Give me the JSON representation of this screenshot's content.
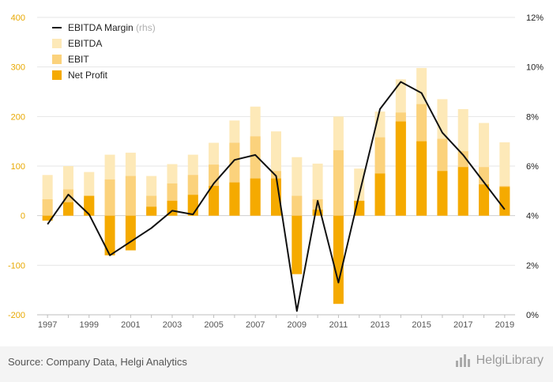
{
  "chart_data": {
    "type": "bar",
    "x": [
      "1997",
      "1998",
      "1999",
      "2000",
      "2001",
      "2002",
      "2003",
      "2004",
      "2005",
      "2006",
      "2007",
      "2008",
      "2009",
      "2010",
      "2011",
      "2012",
      "2013",
      "2014",
      "2015",
      "2016",
      "2017",
      "2018",
      "2019"
    ],
    "x_tick_labels": [
      "1997",
      "1999",
      "2001",
      "2003",
      "2005",
      "2007",
      "2009",
      "2011",
      "2013",
      "2015",
      "2017",
      "2019"
    ],
    "series": [
      {
        "name": "EBITDA",
        "kind": "bar",
        "axis": "left",
        "color": "#fde9b8",
        "values": [
          82,
          100,
          88,
          123,
          127,
          80,
          104,
          123,
          147,
          192,
          220,
          170,
          118,
          105,
          200,
          95,
          210,
          275,
          298,
          235,
          215,
          187,
          148
        ]
      },
      {
        "name": "EBIT",
        "kind": "bar",
        "axis": "left",
        "color": "#fbd27c",
        "values": [
          33,
          53,
          35,
          73,
          80,
          40,
          65,
          82,
          103,
          147,
          160,
          90,
          40,
          33,
          132,
          30,
          158,
          208,
          225,
          155,
          130,
          98,
          60
        ]
      },
      {
        "name": "Net Profit",
        "kind": "bar",
        "axis": "left",
        "color": "#f5aa00",
        "values": [
          -10,
          27,
          40,
          -80,
          -70,
          18,
          30,
          42,
          60,
          67,
          75,
          75,
          -118,
          12,
          -178,
          30,
          85,
          190,
          150,
          90,
          98,
          63,
          58
        ]
      },
      {
        "name": "EBITDA Margin",
        "name_suffix": "(rhs)",
        "kind": "line",
        "axis": "right",
        "color": "#111111",
        "values": [
          3.65,
          4.85,
          4.05,
          2.4,
          2.95,
          3.5,
          4.2,
          4.05,
          5.3,
          6.25,
          6.45,
          5.6,
          0.15,
          4.6,
          1.3,
          4.85,
          8.3,
          9.4,
          8.95,
          7.35,
          6.45,
          5.35,
          4.25
        ]
      }
    ],
    "y_left": {
      "min": -200,
      "max": 400,
      "ticks": [
        -200,
        -100,
        0,
        100,
        200,
        300,
        400
      ],
      "tick_color": "#e8a800"
    },
    "y_right": {
      "min": 0,
      "max": 12,
      "ticks": [
        0,
        2,
        4,
        6,
        8,
        10,
        12
      ],
      "unit": "%"
    },
    "grid": true,
    "legend_position": "top-left"
  },
  "footer": {
    "source": "Source: Company Data, Helgi Analytics",
    "brand": "HelgiLibrary"
  }
}
